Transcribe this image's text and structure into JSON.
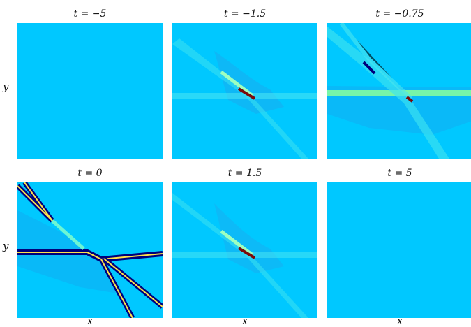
{
  "chart_data": [
    {
      "type": "heatmap",
      "title": "t = −5",
      "time": -5,
      "xlabel": "",
      "ylabel": "y",
      "intensity": 0
    },
    {
      "type": "heatmap",
      "title": "t = −1.5",
      "time": -1.5,
      "xlabel": "",
      "ylabel": "",
      "intensity": 2
    },
    {
      "type": "heatmap",
      "title": "t = −0.75",
      "time": -0.75,
      "xlabel": "",
      "ylabel": "",
      "intensity": 3
    },
    {
      "type": "heatmap",
      "title": "t = 0",
      "time": 0,
      "xlabel": "x",
      "ylabel": "y",
      "intensity": 5
    },
    {
      "type": "heatmap",
      "title": "t = 1.5",
      "time": 1.5,
      "xlabel": "x",
      "ylabel": "",
      "intensity": 2
    },
    {
      "type": "heatmap",
      "title": "t = 5",
      "time": 5,
      "xlabel": "x",
      "ylabel": "",
      "intensity": 0
    }
  ],
  "colors": {
    "background": "#00c8ff",
    "low": "#0f8fe6",
    "mid": "#7fffc8",
    "high": "#ffe14a",
    "peak": "#7a0a0a",
    "dark": "#00007a"
  }
}
